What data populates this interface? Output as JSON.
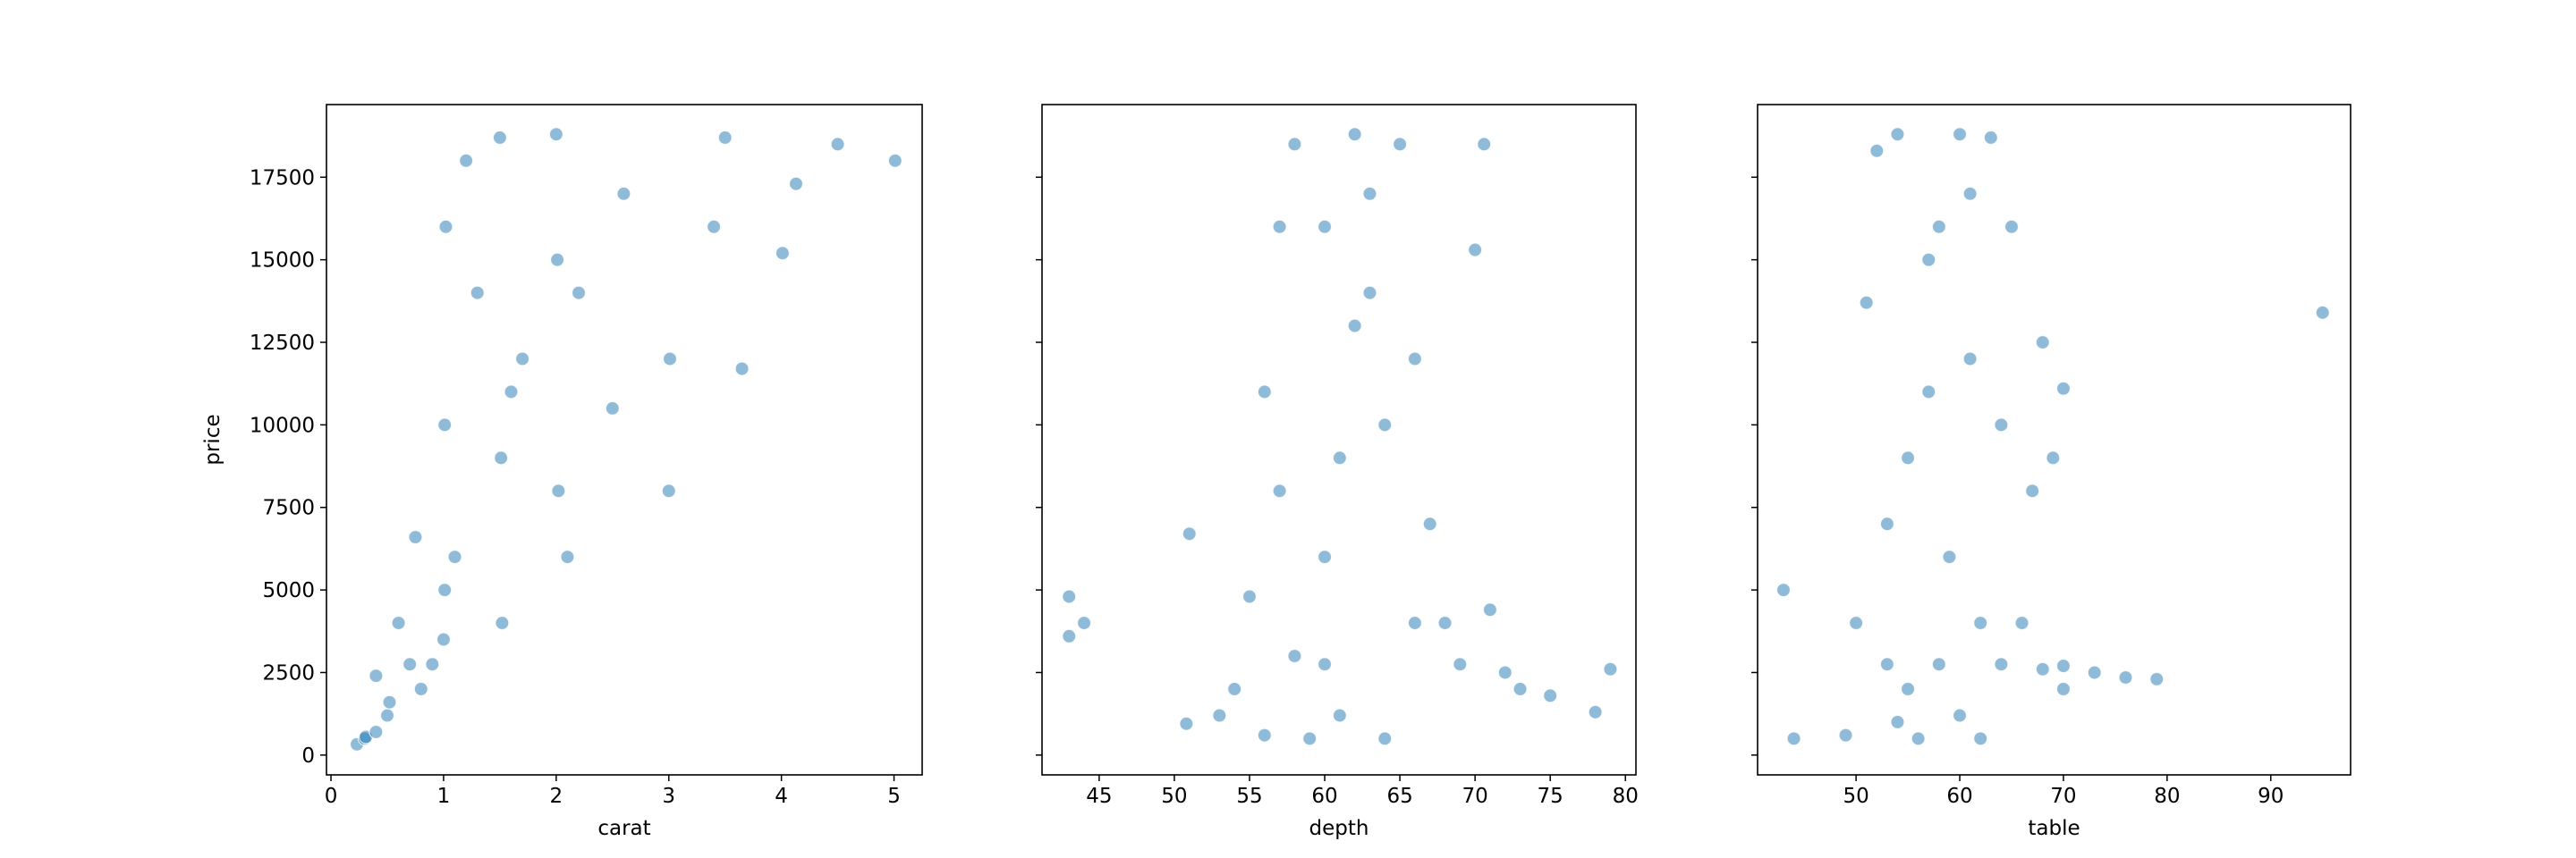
{
  "chart_data": [
    {
      "type": "scatter",
      "x_label": "carat",
      "y_label": "price",
      "color": "#1f77b4",
      "x": [
        0.23,
        0.3,
        0.31,
        0.4,
        0.5,
        0.52,
        0.7,
        0.9,
        1.0,
        1.01,
        1.01,
        1.02,
        1.2,
        1.5,
        1.51,
        1.52,
        1.7,
        2.0,
        2.01,
        2.02,
        2.1,
        2.5,
        3.0,
        3.01,
        3.4,
        3.5,
        3.65,
        4.01,
        4.13,
        4.5,
        5.01,
        0.6,
        0.75,
        0.8,
        1.1,
        1.3,
        1.6,
        2.2,
        2.6,
        0.4
      ],
      "values": [
        326,
        500,
        550,
        700,
        1200,
        1600,
        2750,
        2750,
        3500,
        5000,
        10000,
        16000,
        18000,
        18700,
        9000,
        4000,
        12000,
        18800,
        15000,
        8000,
        6000,
        10500,
        8000,
        12000,
        16000,
        18700,
        11700,
        15200,
        17300,
        18500,
        18000,
        4000,
        6600,
        2000,
        6000,
        14000,
        11000,
        14000,
        17000,
        2400
      ],
      "xlim": [
        -0.04,
        5.25
      ],
      "xticks": [
        0,
        1,
        2,
        3,
        4,
        5
      ],
      "ylim": [
        -600,
        19700
      ],
      "yticks": [
        0,
        2500,
        5000,
        7500,
        10000,
        12500,
        15000,
        17500
      ],
      "ytick_labels": true
    },
    {
      "type": "scatter",
      "x_label": "depth",
      "color": "#1f77b4",
      "x": [
        43,
        43,
        44,
        51,
        50.8,
        53,
        54,
        55,
        56,
        57,
        58,
        59,
        60,
        61,
        62,
        63,
        64,
        65,
        66,
        67,
        68,
        69,
        70,
        70.6,
        71,
        73,
        75,
        78,
        79,
        60,
        62,
        61,
        58,
        63,
        64,
        66,
        57,
        60,
        72,
        56
      ],
      "values": [
        3600,
        4800,
        4000,
        6700,
        950,
        1200,
        2000,
        4800,
        11000,
        16000,
        18500,
        500,
        2750,
        9000,
        18800,
        14000,
        500,
        18500,
        12000,
        7000,
        4000,
        2750,
        15300,
        18500,
        4400,
        2000,
        1800,
        1300,
        2600,
        6000,
        13000,
        1200,
        3000,
        17000,
        10000,
        4000,
        8000,
        16000,
        2500,
        600
      ],
      "xlim": [
        41.2,
        80.7
      ],
      "xticks": [
        45,
        50,
        55,
        60,
        65,
        70,
        75,
        80
      ],
      "ylim": [
        -600,
        19700
      ],
      "yticks": [
        0,
        2500,
        5000,
        7500,
        10000,
        12500,
        15000,
        17500
      ],
      "ytick_labels": false
    },
    {
      "type": "scatter",
      "x_label": "table",
      "color": "#1f77b4",
      "x": [
        43,
        44,
        49,
        50,
        51,
        52,
        53,
        54,
        55,
        56,
        57,
        58,
        59,
        60,
        61,
        62,
        63,
        64,
        65,
        66,
        67,
        68,
        69,
        70,
        70,
        73,
        76,
        79,
        95,
        55,
        58,
        60,
        53,
        57,
        62,
        64,
        68,
        70,
        61,
        54
      ],
      "values": [
        5000,
        500,
        600,
        4000,
        13700,
        18300,
        2750,
        18800,
        9000,
        500,
        15000,
        2750,
        6000,
        18800,
        12000,
        500,
        18700,
        10000,
        16000,
        4000,
        8000,
        12500,
        9000,
        2000,
        11100,
        2500,
        2350,
        2300,
        13400,
        2000,
        16000,
        1200,
        7000,
        11000,
        4000,
        2750,
        2600,
        2700,
        17000,
        1000
      ],
      "xlim": [
        40.5,
        97.7
      ],
      "xticks": [
        50,
        60,
        70,
        80,
        90
      ],
      "ylim": [
        -600,
        19700
      ],
      "yticks": [
        0,
        2500,
        5000,
        7500,
        10000,
        12500,
        15000,
        17500
      ],
      "ytick_labels": false
    }
  ]
}
